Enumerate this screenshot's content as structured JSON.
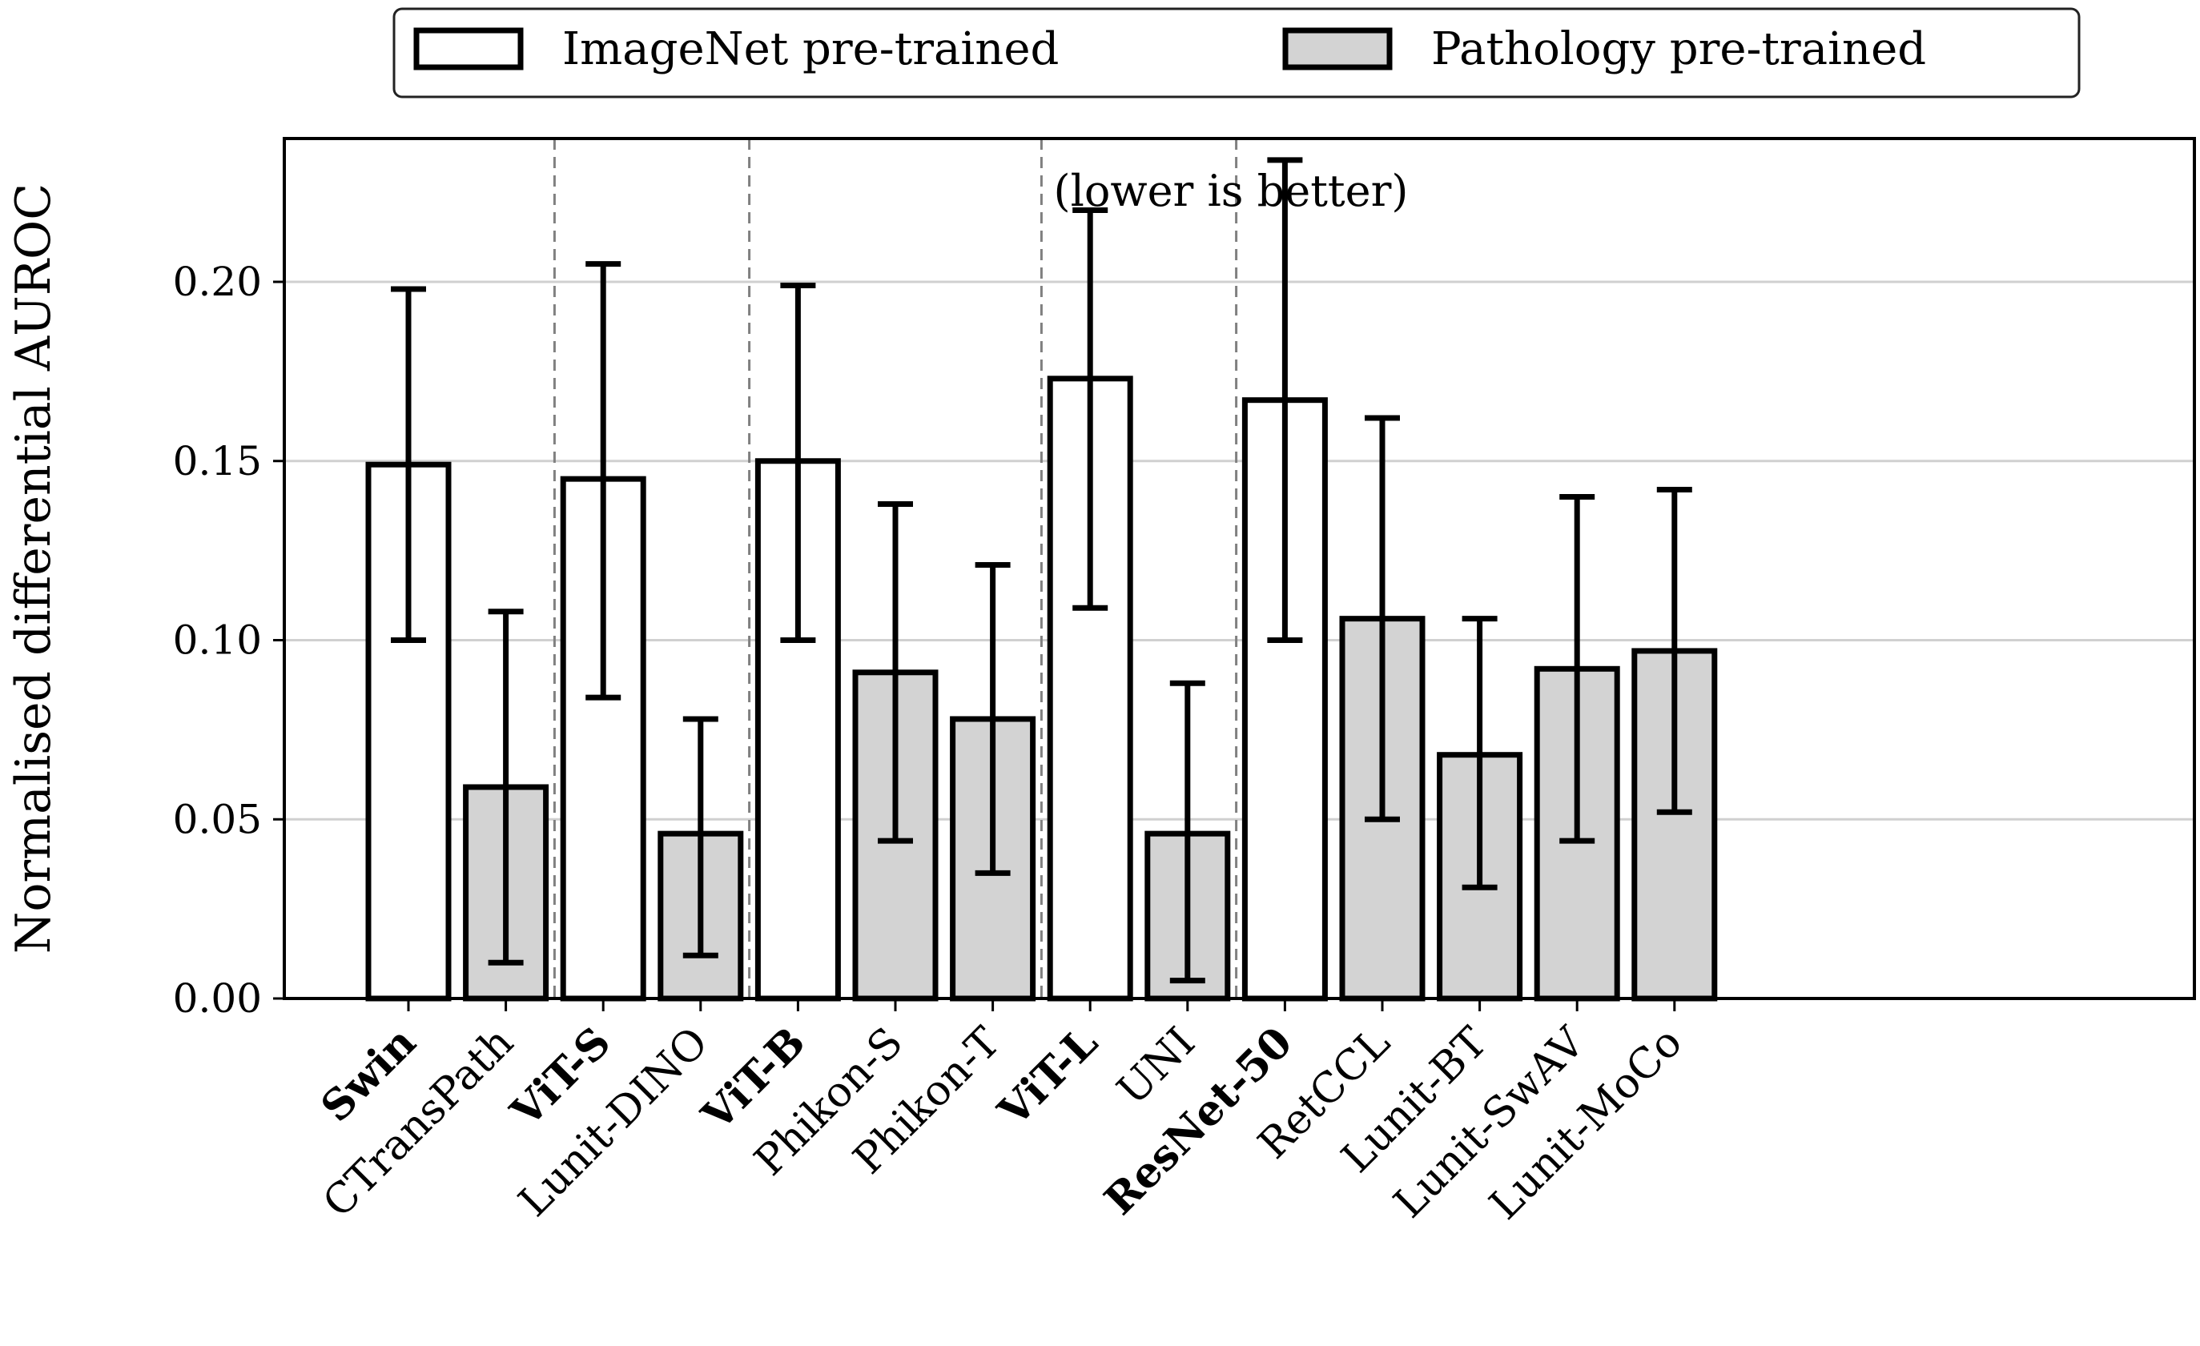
{
  "chart_data": {
    "type": "bar",
    "title": "",
    "xlabel": "",
    "ylabel": "Normalised differential AUROC",
    "annotation": "(lower is better)",
    "ylim": [
      0,
      0.24
    ],
    "yticks": [
      0.0,
      0.05,
      0.1,
      0.15,
      0.2
    ],
    "ytick_labels": [
      "0.00",
      "0.05",
      "0.10",
      "0.15",
      "0.20"
    ],
    "grid": "horizontal",
    "legend_placement": "top-center",
    "colors": {
      "imagenet": "#ffffff",
      "pathology": "#d3d3d3",
      "edge": "#000000",
      "grid": "#d0d0d0",
      "separator": "#808080"
    },
    "legend": [
      {
        "name": "ImageNet pre-trained",
        "kind": "imagenet"
      },
      {
        "name": "Pathology pre-trained",
        "kind": "pathology"
      }
    ],
    "groups": [
      {
        "bars": [
          {
            "label": "Swin",
            "kind": "imagenet",
            "bold": true,
            "value": 0.149,
            "err_low": 0.1,
            "err_high": 0.198
          },
          {
            "label": "CTransPath",
            "kind": "pathology",
            "bold": false,
            "value": 0.059,
            "err_low": 0.01,
            "err_high": 0.108
          }
        ]
      },
      {
        "bars": [
          {
            "label": "ViT-S",
            "kind": "imagenet",
            "bold": true,
            "value": 0.145,
            "err_low": 0.084,
            "err_high": 0.205
          },
          {
            "label": "Lunit-DINO",
            "kind": "pathology",
            "bold": false,
            "value": 0.046,
            "err_low": 0.012,
            "err_high": 0.078
          }
        ]
      },
      {
        "bars": [
          {
            "label": "ViT-B",
            "kind": "imagenet",
            "bold": true,
            "value": 0.15,
            "err_low": 0.1,
            "err_high": 0.199
          },
          {
            "label": "Phikon-S",
            "kind": "pathology",
            "bold": false,
            "value": 0.091,
            "err_low": 0.044,
            "err_high": 0.138
          },
          {
            "label": "Phikon-T",
            "kind": "pathology",
            "bold": false,
            "value": 0.078,
            "err_low": 0.035,
            "err_high": 0.121
          }
        ]
      },
      {
        "bars": [
          {
            "label": "ViT-L",
            "kind": "imagenet",
            "bold": true,
            "value": 0.173,
            "err_low": 0.109,
            "err_high": 0.22
          },
          {
            "label": "UNI",
            "kind": "pathology",
            "bold": false,
            "value": 0.046,
            "err_low": 0.005,
            "err_high": 0.088
          }
        ]
      },
      {
        "bars": [
          {
            "label": "ResNet-50",
            "kind": "imagenet",
            "bold": true,
            "value": 0.167,
            "err_low": 0.1,
            "err_high": 0.234
          },
          {
            "label": "RetCCL",
            "kind": "pathology",
            "bold": false,
            "value": 0.106,
            "err_low": 0.05,
            "err_high": 0.162
          },
          {
            "label": "Lunit-BT",
            "kind": "pathology",
            "bold": false,
            "value": 0.068,
            "err_low": 0.031,
            "err_high": 0.106
          },
          {
            "label": "Lunit-SwAV",
            "kind": "pathology",
            "bold": false,
            "value": 0.092,
            "err_low": 0.044,
            "err_high": 0.14
          },
          {
            "label": "Lunit-MoCo",
            "kind": "pathology",
            "bold": false,
            "value": 0.097,
            "err_low": 0.052,
            "err_high": 0.142
          }
        ]
      }
    ]
  }
}
